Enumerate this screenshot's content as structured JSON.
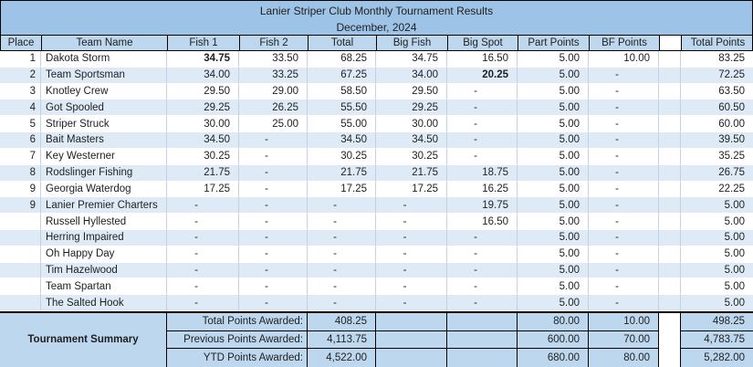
{
  "title": "Lanier Striper Club Monthly Tournament Results",
  "subtitle": "December, 2024",
  "colors": {
    "title_bg": "#9dc3e6",
    "header_bg": "#bdd7ee",
    "stripe_bg": "#deebf7",
    "summary_bg": "#bdd7ee"
  },
  "columns": [
    "Place",
    "Team Name",
    "Fish 1",
    "Fish 2",
    "Total",
    "Big Fish",
    "Big Spot",
    "Part Points",
    "BF Points",
    "",
    "Total Points"
  ],
  "rows": [
    {
      "place": "1",
      "team": "Dakota Storm",
      "fish1": "34.75",
      "fish2": "33.50",
      "total": "68.25",
      "big_fish": "34.75",
      "big_spot": "16.50",
      "part_points": "5.00",
      "bf_points": "10.00",
      "total_points": "83.25",
      "bold": [
        "fish1"
      ]
    },
    {
      "place": "2",
      "team": "Team Sportsman",
      "fish1": "34.00",
      "fish2": "33.25",
      "total": "67.25",
      "big_fish": "34.00",
      "big_spot": "20.25",
      "part_points": "5.00",
      "bf_points": "-",
      "total_points": "72.25",
      "bold": [
        "big_spot"
      ]
    },
    {
      "place": "3",
      "team": "Knotley Crew",
      "fish1": "29.50",
      "fish2": "29.00",
      "total": "58.50",
      "big_fish": "29.50",
      "big_spot": "-",
      "part_points": "5.00",
      "bf_points": "-",
      "total_points": "63.50",
      "bold": []
    },
    {
      "place": "4",
      "team": "Got Spooled",
      "fish1": "29.25",
      "fish2": "26.25",
      "total": "55.50",
      "big_fish": "29.25",
      "big_spot": "-",
      "part_points": "5.00",
      "bf_points": "-",
      "total_points": "60.50",
      "bold": []
    },
    {
      "place": "5",
      "team": "Striper Struck",
      "fish1": "30.00",
      "fish2": "25.00",
      "total": "55.00",
      "big_fish": "30.00",
      "big_spot": "-",
      "part_points": "5.00",
      "bf_points": "-",
      "total_points": "60.00",
      "bold": []
    },
    {
      "place": "6",
      "team": "Bait Masters",
      "fish1": "34.50",
      "fish2": "-",
      "total": "34.50",
      "big_fish": "34.50",
      "big_spot": "-",
      "part_points": "5.00",
      "bf_points": "-",
      "total_points": "39.50",
      "bold": []
    },
    {
      "place": "7",
      "team": "Key Westerner",
      "fish1": "30.25",
      "fish2": "-",
      "total": "30.25",
      "big_fish": "30.25",
      "big_spot": "-",
      "part_points": "5.00",
      "bf_points": "-",
      "total_points": "35.25",
      "bold": []
    },
    {
      "place": "8",
      "team": "Rodslinger Fishing",
      "fish1": "21.75",
      "fish2": "-",
      "total": "21.75",
      "big_fish": "21.75",
      "big_spot": "18.75",
      "part_points": "5.00",
      "bf_points": "-",
      "total_points": "26.75",
      "bold": []
    },
    {
      "place": "9",
      "team": "Georgia Waterdog",
      "fish1": "17.25",
      "fish2": "-",
      "total": "17.25",
      "big_fish": "17.25",
      "big_spot": "16.25",
      "part_points": "5.00",
      "bf_points": "-",
      "total_points": "22.25",
      "bold": []
    },
    {
      "place": "9",
      "team": "Lanier Premier Charters",
      "fish1": "-",
      "fish2": "-",
      "total": "-",
      "big_fish": "-",
      "big_spot": "19.75",
      "part_points": "5.00",
      "bf_points": "-",
      "total_points": "5.00",
      "bold": []
    },
    {
      "place": "",
      "team": "Russell Hyllested",
      "fish1": "-",
      "fish2": "-",
      "total": "-",
      "big_fish": "-",
      "big_spot": "16.50",
      "part_points": "5.00",
      "bf_points": "-",
      "total_points": "5.00",
      "bold": []
    },
    {
      "place": "",
      "team": "Herring Impaired",
      "fish1": "-",
      "fish2": "-",
      "total": "-",
      "big_fish": "-",
      "big_spot": "-",
      "part_points": "5.00",
      "bf_points": "-",
      "total_points": "5.00",
      "bold": []
    },
    {
      "place": "",
      "team": "Oh Happy Day",
      "fish1": "-",
      "fish2": "-",
      "total": "-",
      "big_fish": "-",
      "big_spot": "-",
      "part_points": "5.00",
      "bf_points": "-",
      "total_points": "5.00",
      "bold": []
    },
    {
      "place": "",
      "team": "Tim Hazelwood",
      "fish1": "-",
      "fish2": "-",
      "total": "-",
      "big_fish": "-",
      "big_spot": "-",
      "part_points": "5.00",
      "bf_points": "-",
      "total_points": "5.00",
      "bold": []
    },
    {
      "place": "",
      "team": "Team Spartan",
      "fish1": "-",
      "fish2": "-",
      "total": "-",
      "big_fish": "-",
      "big_spot": "-",
      "part_points": "5.00",
      "bf_points": "-",
      "total_points": "5.00",
      "bold": []
    },
    {
      "place": "",
      "team": "The Salted Hook",
      "fish1": "-",
      "fish2": "-",
      "total": "-",
      "big_fish": "-",
      "big_spot": "-",
      "part_points": "5.00",
      "bf_points": "-",
      "total_points": "5.00",
      "bold": []
    }
  ],
  "summary": {
    "title": "Tournament Summary",
    "rows": [
      {
        "label": "Total Points Awarded:",
        "value": "408.25",
        "part_points": "80.00",
        "bf_points": "10.00",
        "total_points": "498.25"
      },
      {
        "label": "Previous Points Awarded:",
        "value": "4,113.75",
        "part_points": "600.00",
        "bf_points": "70.00",
        "total_points": "4,783.75"
      },
      {
        "label": "YTD Points Awarded:",
        "value": "4,522.00",
        "part_points": "680.00",
        "bf_points": "80.00",
        "total_points": "5,282.00"
      }
    ]
  }
}
